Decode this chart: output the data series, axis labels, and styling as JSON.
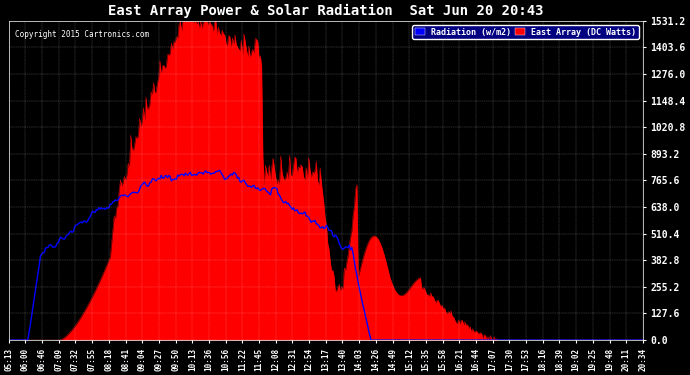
{
  "title": "East Array Power & Solar Radiation  Sat Jun 20 20:43",
  "copyright": "Copyright 2015 Cartronics.com",
  "legend_labels": [
    "Radiation (w/m2)",
    "East Array (DC Watts)"
  ],
  "legend_colors": [
    "#0000ff",
    "#ff0000"
  ],
  "y_min": 0.0,
  "y_max": 1531.2,
  "y_ticks": [
    0.0,
    127.6,
    255.2,
    382.8,
    510.4,
    638.0,
    765.6,
    893.2,
    1020.8,
    1148.4,
    1276.0,
    1403.6,
    1531.2
  ],
  "bg_color": "#000000",
  "plot_bg_color": "#000000",
  "grid_color": "#ffffff",
  "title_color": "#ffffff",
  "tick_color": "#ffffff",
  "radiation_color": "#0000ff",
  "power_color": "#ff0000",
  "x_labels": [
    "05:13",
    "06:00",
    "06:46",
    "07:09",
    "07:32",
    "07:55",
    "08:18",
    "08:41",
    "09:04",
    "09:27",
    "09:50",
    "10:13",
    "10:36",
    "10:56",
    "11:22",
    "11:45",
    "12:08",
    "12:31",
    "12:54",
    "13:17",
    "13:40",
    "14:03",
    "14:26",
    "14:49",
    "15:12",
    "15:35",
    "15:58",
    "16:21",
    "16:44",
    "17:07",
    "17:30",
    "17:53",
    "18:16",
    "18:39",
    "19:02",
    "19:25",
    "19:48",
    "20:11",
    "20:34"
  ]
}
